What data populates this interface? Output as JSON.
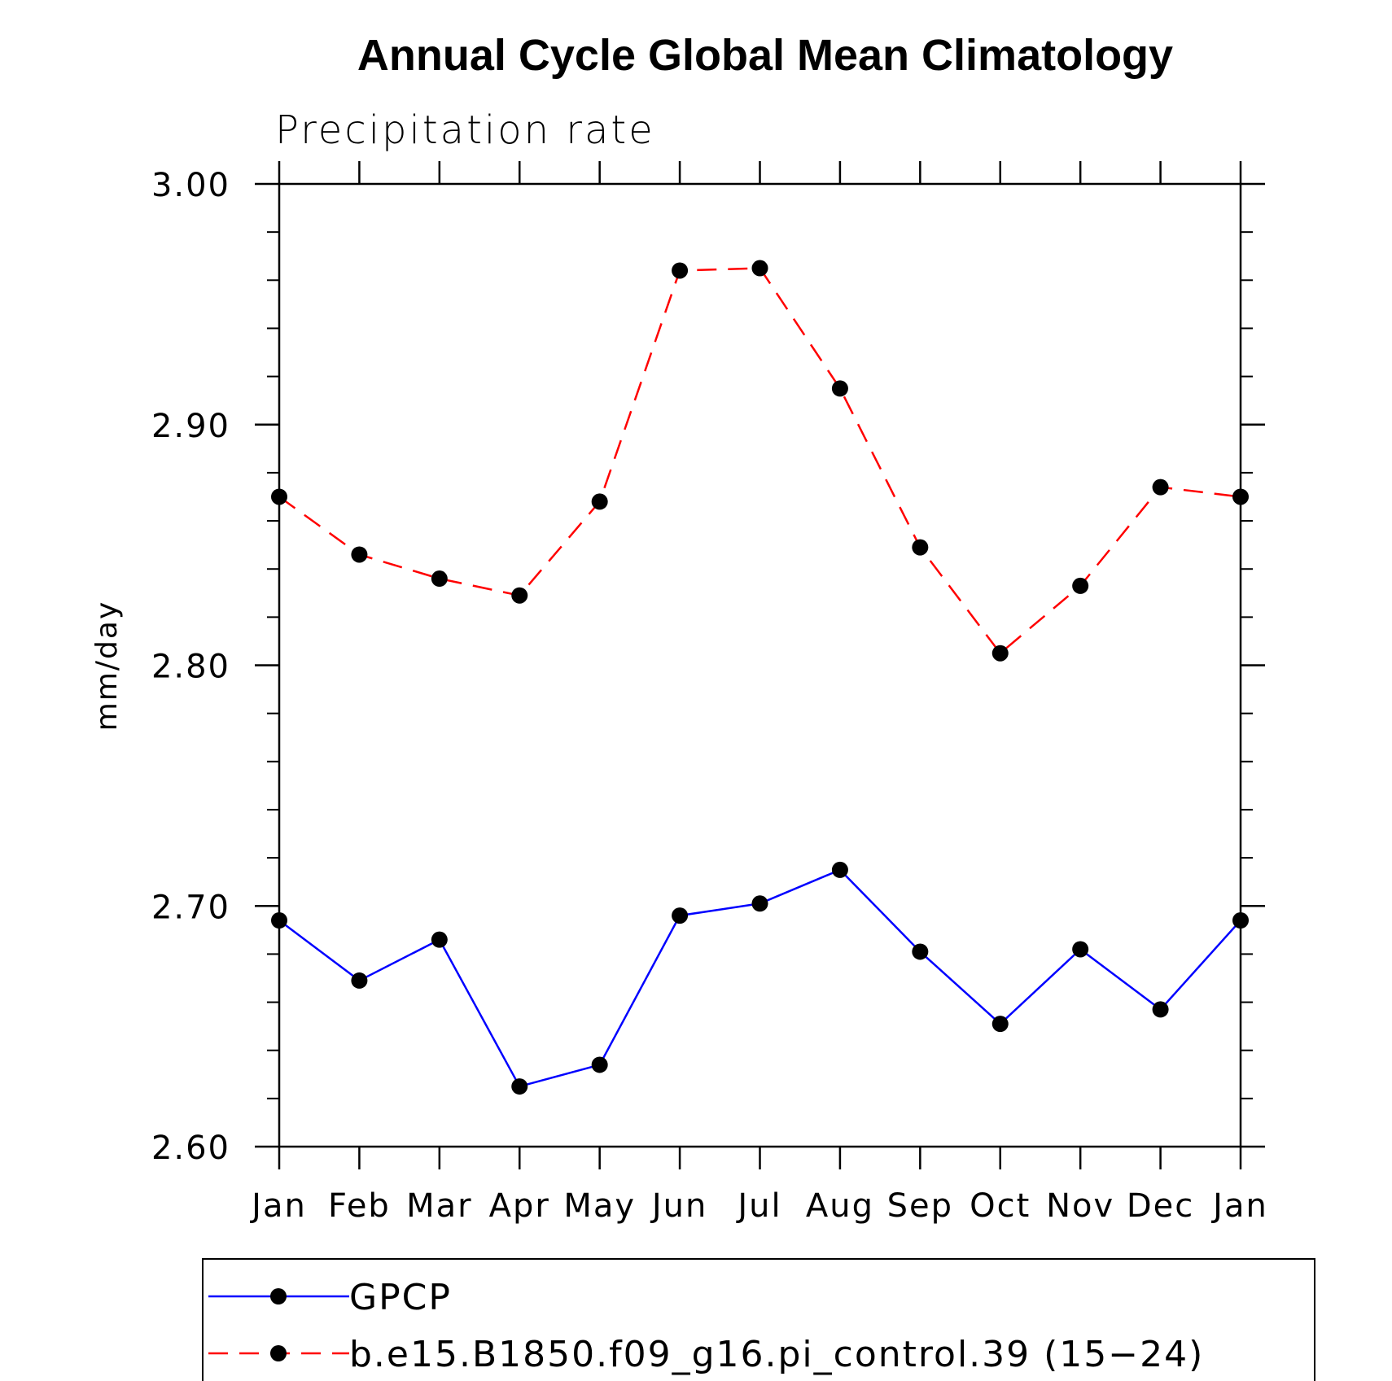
{
  "chart_data": {
    "type": "line",
    "title": "Annual Cycle Global Mean Climatology",
    "subtitle": "Precipitation rate",
    "ylabel": "mm/day",
    "xlabel": "",
    "categories": [
      "Jan",
      "Feb",
      "Mar",
      "Apr",
      "May",
      "Jun",
      "Jul",
      "Aug",
      "Sep",
      "Oct",
      "Nov",
      "Dec",
      "Jan"
    ],
    "ylim": [
      2.6,
      3.0
    ],
    "yticks": [
      "2.60",
      "2.70",
      "2.80",
      "2.90",
      "3.00"
    ],
    "y_minor_step": 0.02,
    "series": [
      {
        "name": "GPCP",
        "color": "#0000ff",
        "dash": "solid",
        "values": [
          2.694,
          2.669,
          2.686,
          2.625,
          2.634,
          2.696,
          2.701,
          2.715,
          2.681,
          2.651,
          2.682,
          2.657,
          2.694
        ]
      },
      {
        "name": "b.e15.B1850.f09_g16.pi_control.39 (15−24)",
        "color": "#ff0000",
        "dash": "dashed",
        "values": [
          2.87,
          2.846,
          2.836,
          2.829,
          2.868,
          2.964,
          2.965,
          2.915,
          2.849,
          2.805,
          2.833,
          2.874,
          2.87
        ]
      }
    ],
    "legend_position": "bottom",
    "marker_color": "#000000"
  }
}
